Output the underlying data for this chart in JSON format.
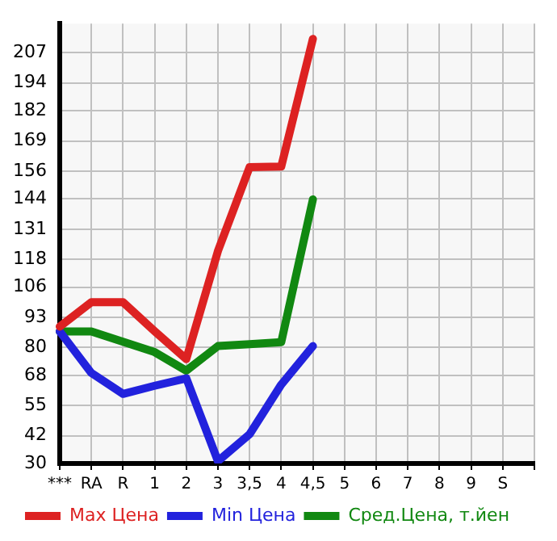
{
  "chart_data": {
    "type": "line",
    "categories": [
      "***",
      "RA",
      "R",
      "1",
      "2",
      "3",
      "3,5",
      "4",
      "4,5",
      "5",
      "6",
      "7",
      "8",
      "9",
      "S",
      null
    ],
    "series": [
      {
        "name": "Max Цена",
        "color": "#dd2222",
        "values": [
          89,
          99.5,
          99.5,
          87,
          75,
          121.6,
          157.7,
          158,
          213,
          null,
          null,
          null,
          null,
          null,
          null,
          null
        ]
      },
      {
        "name": "Min Цена",
        "color": "#2222dd",
        "values": [
          86.9,
          69,
          60,
          63.5,
          66.7,
          31,
          42.6,
          64,
          80.6,
          null,
          null,
          null,
          null,
          null,
          null,
          null
        ]
      },
      {
        "name": "Сред.Цена, т.йен",
        "color": "#118811",
        "values": [
          86.9,
          86.9,
          82.5,
          78,
          70,
          80.6,
          81.4,
          82.3,
          143.8,
          null,
          null,
          null,
          null,
          null,
          null,
          null
        ]
      }
    ],
    "ylim": [
      30,
      219.6
    ],
    "yticks": [
      30,
      42,
      55,
      68,
      80,
      93,
      106,
      118,
      131,
      144,
      156,
      169,
      182,
      194,
      207
    ],
    "grid": true,
    "legend": "bottom",
    "marker": "none",
    "line_style": "solid"
  }
}
